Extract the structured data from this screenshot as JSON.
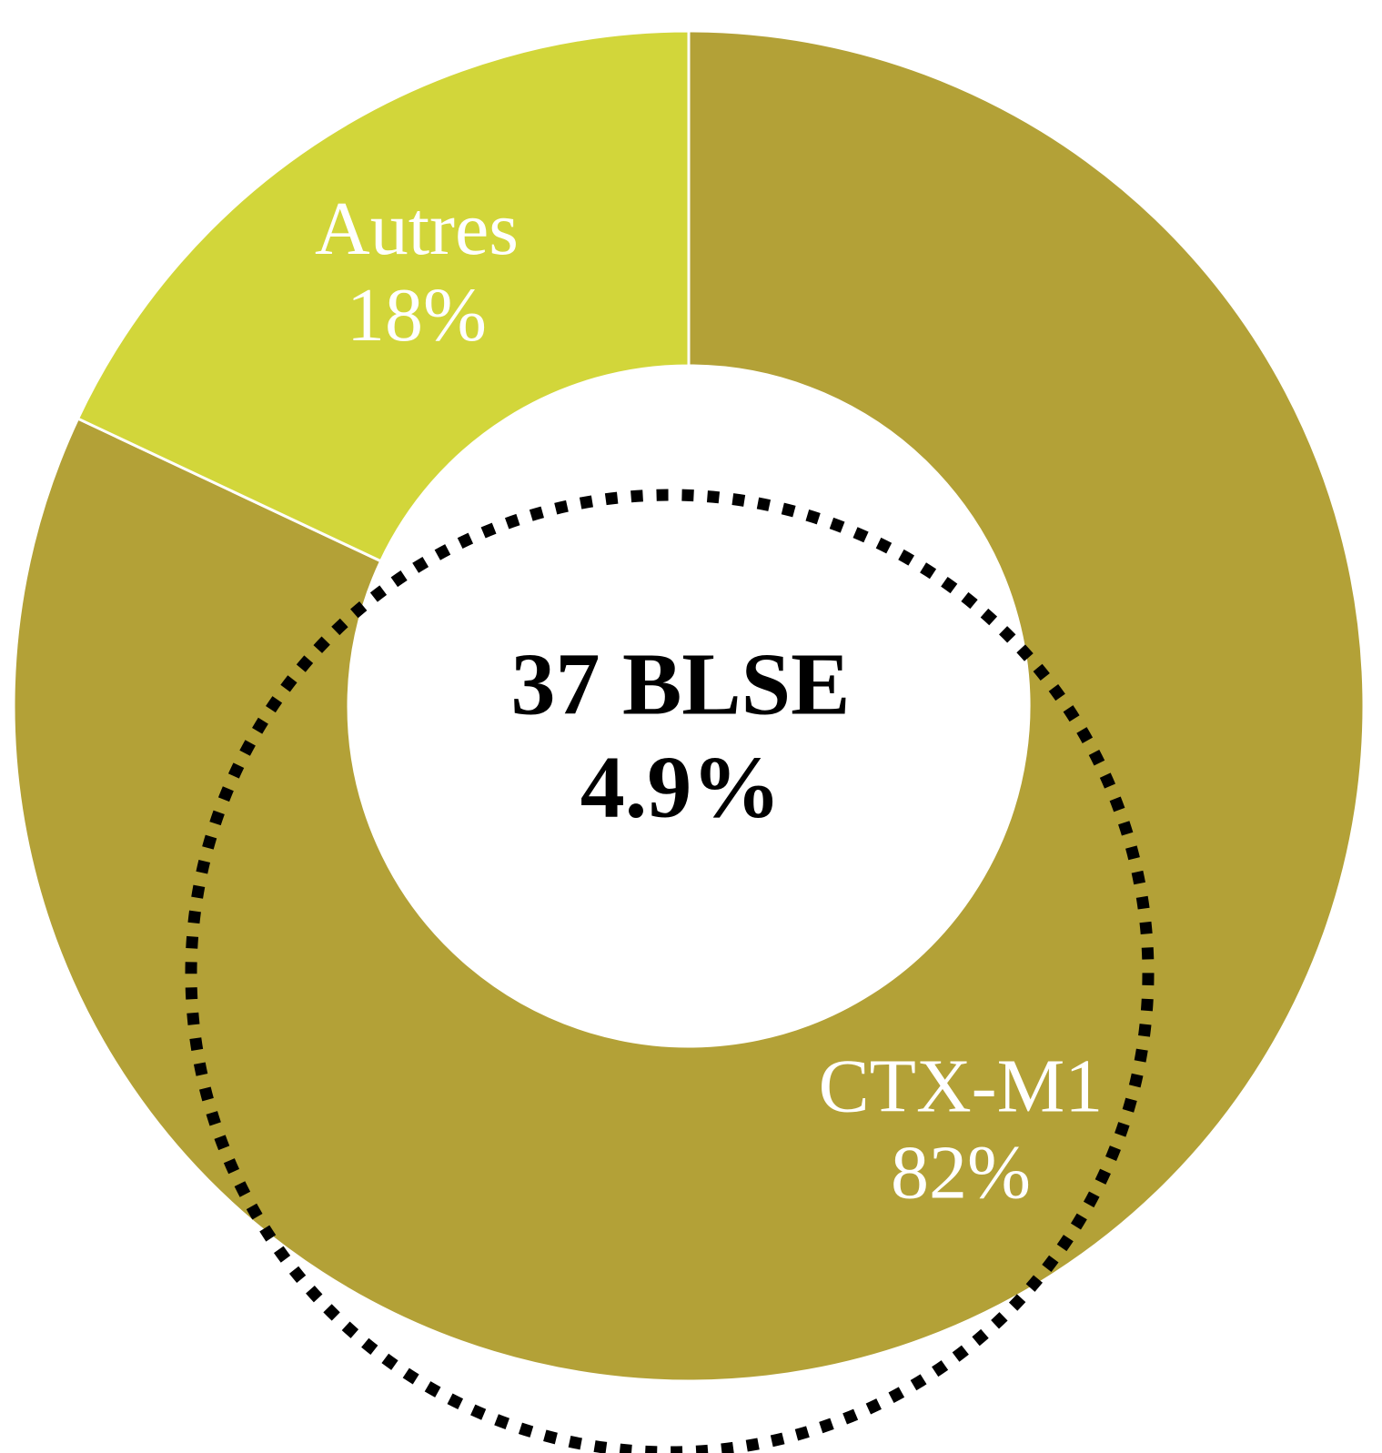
{
  "chart_data": {
    "type": "donut",
    "categories": [
      "CTX-M1",
      "Autres"
    ],
    "values": [
      82,
      18
    ],
    "value_labels": [
      "82%",
      "18%"
    ],
    "colors": [
      "#b3a137",
      "#d2d63a"
    ],
    "center_text": [
      "37 BLSE",
      "4.9%"
    ]
  }
}
